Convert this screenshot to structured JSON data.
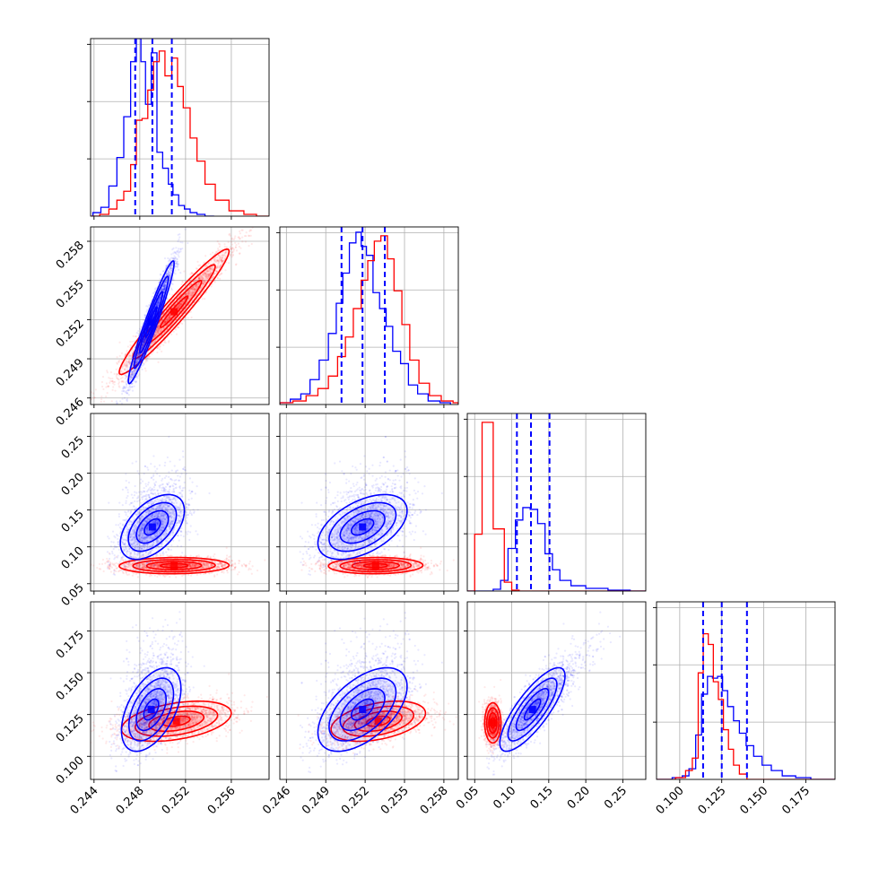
{
  "chart_data": {
    "type": "corner",
    "grid": true,
    "colors": {
      "series_a": "#0000ff",
      "series_b": "#ff0000"
    },
    "parameters": [
      {
        "range": [
          0.2437,
          0.2593
        ],
        "ticks": [
          0.244,
          0.248,
          0.252,
          0.256
        ],
        "tick_labels": [
          "0.244",
          "0.248",
          "0.252",
          "0.256"
        ]
      },
      {
        "range": [
          0.2455,
          0.2591
        ],
        "ticks": [
          0.246,
          0.249,
          0.252,
          0.255,
          0.258
        ],
        "tick_labels": [
          "0.246",
          "0.249",
          "0.252",
          "0.255",
          "0.258"
        ]
      },
      {
        "range": [
          0.04,
          0.281
        ],
        "ticks": [
          0.05,
          0.1,
          0.15,
          0.2,
          0.25
        ],
        "tick_labels": [
          "0.05",
          "0.10",
          "0.15",
          "0.20",
          "0.25"
        ]
      },
      {
        "range": [
          0.0862,
          0.1924
        ],
        "ticks": [
          0.1,
          0.125,
          0.15,
          0.175
        ],
        "tick_labels": [
          "0.100",
          "0.125",
          "0.150",
          "0.175"
        ]
      }
    ],
    "diagonal": [
      {
        "hist_max": 0.23,
        "quantile_lines": [
          0.2476,
          0.2491,
          0.2508
        ],
        "series": [
          {
            "color": "#0000ff",
            "bins": [
              0.2439,
              0.2446,
              0.2453,
              0.246,
              0.2466,
              0.2472,
              0.2477,
              0.2481,
              0.2485,
              0.249,
              0.2495,
              0.25,
              0.2505,
              0.2509,
              0.2514,
              0.2519,
              0.2524,
              0.253,
              0.2537,
              0.2545
            ],
            "counts": [
              0.02,
              0.05,
              0.17,
              0.33,
              0.56,
              0.87,
              1.0,
              0.87,
              0.63,
              0.92,
              0.36,
              0.27,
              0.18,
              0.12,
              0.06,
              0.04,
              0.02,
              0.01,
              0.0
            ]
          },
          {
            "color": "#ff0000",
            "bins": [
              0.2437,
              0.2445,
              0.2453,
              0.246,
              0.2466,
              0.2472,
              0.2477,
              0.2482,
              0.2487,
              0.2492,
              0.2497,
              0.2502,
              0.2508,
              0.2513,
              0.2518,
              0.2524,
              0.253,
              0.2537,
              0.2546,
              0.2558,
              0.2571,
              0.2582,
              0.2593
            ],
            "counts": [
              0.0,
              0.01,
              0.04,
              0.09,
              0.14,
              0.29,
              0.54,
              0.55,
              0.71,
              0.87,
              0.93,
              0.79,
              0.89,
              0.73,
              0.61,
              0.44,
              0.31,
              0.18,
              0.09,
              0.03,
              0.01,
              0.0
            ]
          }
        ]
      },
      {
        "hist_max": 0.31,
        "quantile_lines": [
          0.2502,
          0.2518,
          0.2535
        ],
        "series": [
          {
            "color": "#0000ff",
            "bins": [
              0.2455,
              0.2463,
              0.2471,
              0.2478,
              0.2485,
              0.2492,
              0.2498,
              0.2503,
              0.2508,
              0.2513,
              0.2517,
              0.2521,
              0.2526,
              0.2531,
              0.2536,
              0.2541,
              0.2547,
              0.2553,
              0.256,
              0.2568,
              0.2577,
              0.2585
            ],
            "counts": [
              0.01,
              0.03,
              0.06,
              0.14,
              0.25,
              0.4,
              0.57,
              0.74,
              0.91,
              0.97,
              0.89,
              0.84,
              0.63,
              0.54,
              0.44,
              0.3,
              0.23,
              0.11,
              0.06,
              0.02,
              0.01
            ]
          },
          {
            "color": "#ff0000",
            "bins": [
              0.2455,
              0.2465,
              0.2475,
              0.2484,
              0.2492,
              0.2499,
              0.2505,
              0.2511,
              0.2517,
              0.2522,
              0.2527,
              0.2532,
              0.2537,
              0.2542,
              0.2548,
              0.2554,
              0.2561,
              0.2569,
              0.2578,
              0.2587,
              0.2591
            ],
            "counts": [
              0.01,
              0.02,
              0.05,
              0.09,
              0.16,
              0.27,
              0.38,
              0.54,
              0.7,
              0.81,
              0.92,
              0.95,
              0.82,
              0.64,
              0.45,
              0.25,
              0.12,
              0.05,
              0.02,
              0.01
            ]
          }
        ]
      },
      {
        "hist_max": 0.57,
        "quantile_lines": [
          0.107,
          0.126,
          0.151
        ],
        "series": [
          {
            "color": "#0000ff",
            "bins": [
              0.04,
              0.06,
              0.075,
              0.085,
              0.095,
              0.105,
              0.115,
              0.125,
              0.135,
              0.145,
              0.155,
              0.165,
              0.18,
              0.2,
              0.23,
              0.26,
              0.281
            ],
            "counts": [
              0.0,
              0.0,
              0.01,
              0.06,
              0.24,
              0.4,
              0.47,
              0.46,
              0.38,
              0.21,
              0.12,
              0.06,
              0.03,
              0.015,
              0.005,
              0.0
            ]
          },
          {
            "color": "#ff0000",
            "bins": [
              0.04,
              0.05,
              0.06,
              0.075,
              0.09,
              0.1,
              0.11,
              0.281
            ],
            "counts": [
              0.0,
              0.32,
              0.95,
              0.35,
              0.05,
              0.005,
              0.0
            ]
          }
        ]
      },
      {
        "hist_max": 0.92,
        "quantile_lines": [
          0.1139,
          0.125,
          0.14
        ],
        "series": [
          {
            "color": "#0000ff",
            "bins": [
              0.0862,
              0.0955,
              0.1015,
              0.1055,
              0.1095,
              0.113,
              0.1165,
              0.1195,
              0.1225,
              0.1255,
              0.1285,
              0.132,
              0.1355,
              0.1395,
              0.144,
              0.149,
              0.1545,
              0.161,
              0.169,
              0.178,
              0.1924
            ],
            "counts": [
              0.0,
              0.01,
              0.02,
              0.06,
              0.25,
              0.48,
              0.58,
              0.57,
              0.58,
              0.5,
              0.41,
              0.33,
              0.26,
              0.19,
              0.13,
              0.08,
              0.05,
              0.02,
              0.01,
              0.0
            ]
          },
          {
            "color": "#ff0000",
            "bins": [
              0.0862,
              0.0975,
              0.1035,
              0.1075,
              0.111,
              0.114,
              0.117,
              0.12,
              0.123,
              0.126,
              0.129,
              0.132,
              0.1355,
              0.14,
              0.1924
            ],
            "counts": [
              0.0,
              0.01,
              0.05,
              0.12,
              0.6,
              0.82,
              0.76,
              0.55,
              0.45,
              0.28,
              0.17,
              0.08,
              0.03,
              0.0
            ]
          }
        ]
      }
    ],
    "pairs": [
      {
        "x": 0,
        "y": 1,
        "series": [
          {
            "color": "#0000ff",
            "mean": [
              0.249,
              0.2518
            ],
            "sd": [
              0.001,
              0.00235
            ],
            "corr": 0.96,
            "n": 2600,
            "levels": [
              0.5,
              1.0,
              1.5,
              2.0
            ]
          },
          {
            "color": "#ff0000",
            "mean": [
              0.251,
              0.2526
            ],
            "sd": [
              0.0024,
              0.0024
            ],
            "corr": 0.965,
            "n": 2600,
            "levels": [
              0.5,
              1.0,
              1.5,
              2.0
            ]
          }
        ]
      },
      {
        "x": 0,
        "y": 2,
        "series": [
          {
            "color": "#0000ff",
            "mean": [
              0.2491,
              0.127
            ],
            "sd": [
              0.0014,
              0.022
            ],
            "corr": 0.5,
            "n": 2000,
            "levels": [
              0.5,
              1.0,
              1.5,
              2.0
            ]
          },
          {
            "color": "#ff0000",
            "mean": [
              0.251,
              0.0745
            ],
            "sd": [
              0.0024,
              0.0055
            ],
            "corr": 0.05,
            "n": 2000,
            "levels": [
              0.5,
              1.0,
              1.5,
              2.0
            ]
          }
        ]
      },
      {
        "x": 1,
        "y": 2,
        "series": [
          {
            "color": "#0000ff",
            "mean": [
              0.2518,
              0.127
            ],
            "sd": [
              0.0017,
              0.022
            ],
            "corr": 0.5,
            "n": 2000,
            "levels": [
              0.5,
              1.0,
              1.5,
              2.0
            ]
          },
          {
            "color": "#ff0000",
            "mean": [
              0.2528,
              0.0745
            ],
            "sd": [
              0.0018,
              0.0055
            ],
            "corr": 0.05,
            "n": 2000,
            "levels": [
              0.5,
              1.0,
              1.5,
              2.0
            ]
          }
        ]
      },
      {
        "x": 0,
        "y": 3,
        "series": [
          {
            "color": "#0000ff",
            "mean": [
              0.249,
              0.128
            ],
            "sd": [
              0.0013,
              0.0125
            ],
            "corr": 0.5,
            "n": 2000,
            "levels": [
              0.5,
              1.0,
              1.5,
              2.0
            ]
          },
          {
            "color": "#ff0000",
            "mean": [
              0.2512,
              0.121
            ],
            "sd": [
              0.0024,
              0.006
            ],
            "corr": 0.4,
            "n": 2000,
            "levels": [
              0.5,
              1.0,
              1.5,
              2.0
            ]
          }
        ]
      },
      {
        "x": 1,
        "y": 3,
        "series": [
          {
            "color": "#0000ff",
            "mean": [
              0.2518,
              0.128
            ],
            "sd": [
              0.0017,
              0.0125
            ],
            "corr": 0.55,
            "n": 2000,
            "levels": [
              0.5,
              1.0,
              1.5,
              2.0
            ]
          },
          {
            "color": "#ff0000",
            "mean": [
              0.253,
              0.121
            ],
            "sd": [
              0.0018,
              0.006
            ],
            "corr": 0.4,
            "n": 2000,
            "levels": [
              0.5,
              1.0,
              1.5,
              2.0
            ]
          }
        ]
      },
      {
        "x": 2,
        "y": 3,
        "series": [
          {
            "color": "#0000ff",
            "mean": [
              0.128,
              0.128
            ],
            "sd": [
              0.022,
              0.0125
            ],
            "corr": 0.8,
            "n": 2000,
            "levels": [
              0.5,
              1.0,
              1.5,
              2.0
            ]
          },
          {
            "color": "#ff0000",
            "mean": [
              0.0745,
              0.12
            ],
            "sd": [
              0.0055,
              0.006
            ],
            "corr": 0.0,
            "n": 1800,
            "levels": [
              0.5,
              1.0,
              1.5,
              2.0
            ]
          }
        ]
      }
    ]
  }
}
